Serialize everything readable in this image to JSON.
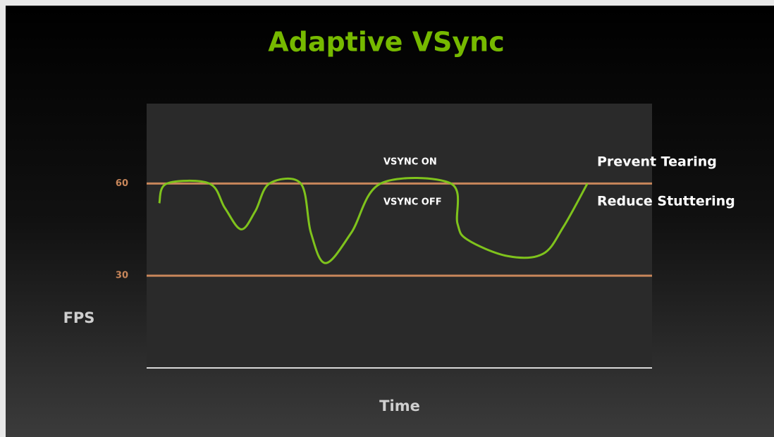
{
  "chart_data": {
    "type": "line",
    "title": "Adaptive VSync",
    "x_label": "Time",
    "y_label": "FPS",
    "annotations": [
      "VSYNC ON",
      "VSYNC OFF",
      "Prevent Tearing",
      "Reduce Stuttering"
    ],
    "xlim": [
      0,
      100
    ],
    "ylim": [
      0,
      86
    ],
    "yticks": [
      30,
      60
    ],
    "grid": true,
    "grid_color": "#c8865a",
    "series": [
      {
        "name": "FPS",
        "color": "#7fc31c",
        "x": [
          2.5,
          4,
          12.4,
          15.5,
          18.7,
          21.5,
          24.3,
          30.5,
          32.5,
          35.4,
          40.5,
          46.3,
          60.2,
          61.5,
          63.5,
          71.4,
          78.4,
          82.5,
          87.2
        ],
        "values": [
          53.6,
          60,
          60,
          52,
          45.1,
          51,
          60,
          60,
          44,
          34.1,
          44,
          60,
          60,
          47,
          41.7,
          36.4,
          37.1,
          46,
          60
        ]
      }
    ]
  }
}
